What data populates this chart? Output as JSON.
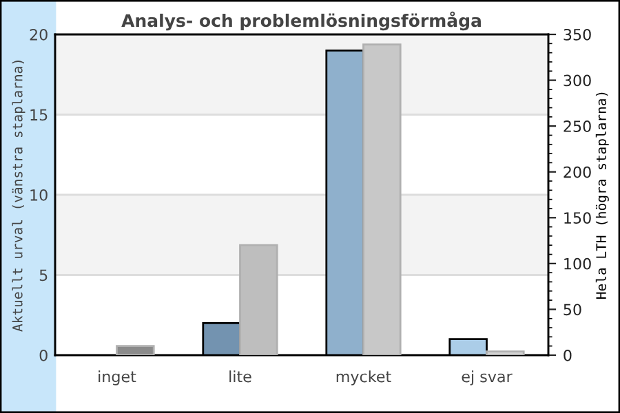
{
  "chart_data": {
    "type": "bar",
    "title": "Analys- och problemlösningsförmåga",
    "ylabel": "Aktuellt urval (vänstra staplarna)",
    "y2label": "Hela LTH (högra staplarna)",
    "categories": [
      "inget",
      "lite",
      "mycket",
      "ej svar"
    ],
    "series": [
      {
        "colors": [
          "#8fb0cc",
          "#7393b0",
          "#8fb0cc",
          "#abcde8"
        ],
        "values": [
          0,
          2,
          19,
          1
        ]
      },
      {
        "colors": [
          "#8a8a8a",
          "#bebebe",
          "#c8c8c8",
          "#d4d4d4"
        ],
        "values": [
          10,
          120,
          339,
          4
        ],
        "axis": "y2"
      }
    ],
    "ylim": [
      0,
      20
    ],
    "yticks": [
      0,
      5,
      10,
      15,
      20
    ],
    "y2lim": [
      0,
      350
    ],
    "y2ticks": [
      0,
      50,
      100,
      150,
      200,
      250,
      300,
      350
    ],
    "bands": [
      {
        "axis": "y",
        "from": 15,
        "to": 20,
        "color": "#f3f3f3"
      },
      {
        "axis": "y",
        "from": 5,
        "to": 10,
        "color": "#f3f3f3"
      }
    ],
    "grid": "y"
  }
}
